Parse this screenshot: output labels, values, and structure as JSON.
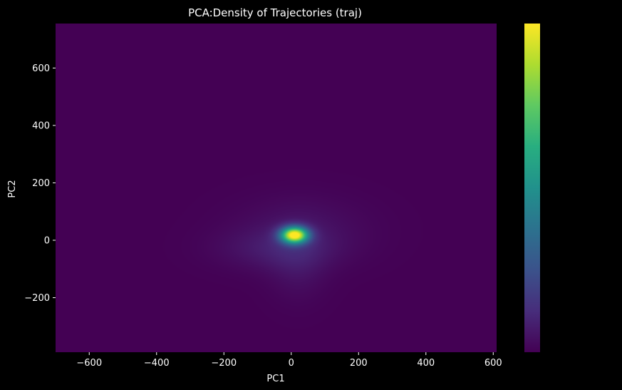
{
  "chart_data": {
    "type": "heatmap",
    "title": "PCA:Density of Trajectories (traj)",
    "xlabel": "PC1",
    "ylabel": "PC2",
    "xlim": [
      -700,
      610
    ],
    "ylim": [
      -390,
      755
    ],
    "xticks": [
      -600,
      -400,
      -200,
      0,
      200,
      400,
      600
    ],
    "yticks": [
      -200,
      0,
      200,
      400,
      600
    ],
    "tick_label_format": "unicode-minus",
    "colormap": "viridis",
    "colorbar": true,
    "colorbar_ticks": [],
    "grid": false,
    "background_color": "#000000",
    "density_peak": {
      "x": 10,
      "y": 18
    },
    "density_components": [
      {
        "cx": 10,
        "cy": 18,
        "sx": 28,
        "sy": 20,
        "weight": 1.0
      },
      {
        "cx": -40,
        "cy": -30,
        "sx": 120,
        "sy": 50,
        "weight": 0.06
      },
      {
        "cx": 20,
        "cy": -70,
        "sx": 60,
        "sy": 90,
        "weight": 0.05
      },
      {
        "cx": 30,
        "cy": 40,
        "sx": 140,
        "sy": 80,
        "weight": 0.04
      }
    ]
  }
}
